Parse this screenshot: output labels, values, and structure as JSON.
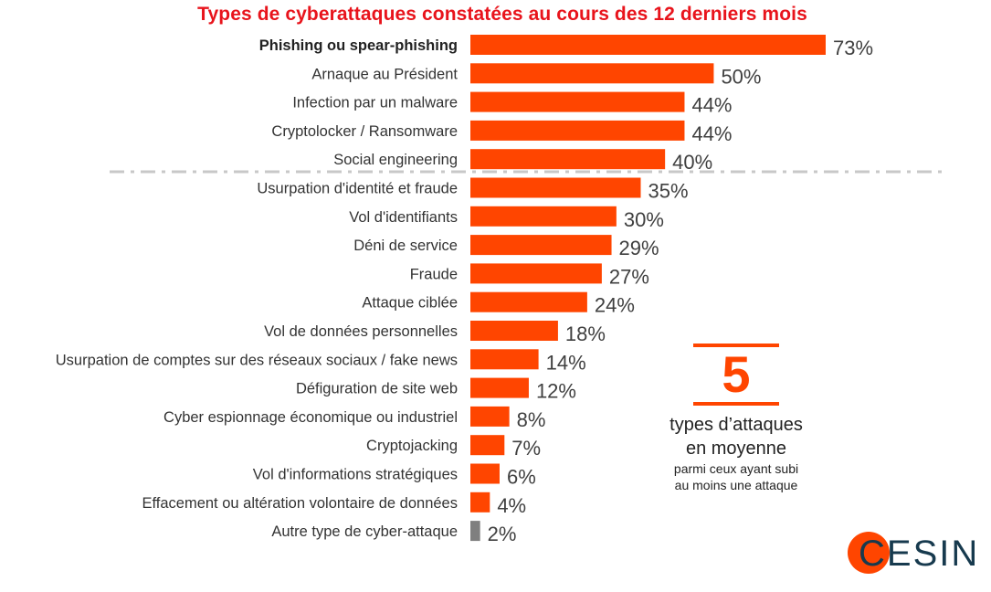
{
  "chart_data": {
    "type": "bar",
    "orientation": "horizontal",
    "title": "Types de cyberattaques constatées au cours des 12 derniers mois",
    "xlabel": "",
    "ylabel": "",
    "xlim": [
      0,
      100
    ],
    "grid": false,
    "categories": [
      "Phishing ou spear-phishing",
      "Arnaque au Président",
      "Infection par un malware",
      "Cryptolocker / Ransomware",
      "Social engineering",
      "Usurpation d'identité et fraude",
      "Vol d'identifiants",
      "Déni de service",
      "Fraude",
      "Attaque ciblée",
      "Vol de données personnelles",
      "Usurpation de comptes sur des réseaux sociaux / fake news",
      "Défiguration de site web",
      "Cyber espionnage économique ou industriel",
      "Cryptojacking",
      "Vol d'informations stratégiques",
      "Effacement ou altération volontaire de données",
      "Autre type de cyber-attaque"
    ],
    "values": [
      73,
      50,
      44,
      44,
      40,
      35,
      30,
      29,
      27,
      24,
      18,
      14,
      12,
      8,
      7,
      6,
      4,
      2
    ],
    "value_labels": [
      "73%",
      "50%",
      "44%",
      "44%",
      "40%",
      "35%",
      "30%",
      "29%",
      "27%",
      "24%",
      "18%",
      "14%",
      "12%",
      "8%",
      "7%",
      "6%",
      "4%",
      "2%"
    ],
    "bar_color": "#ff4500",
    "other_bar_color": "#7f7f7f",
    "title_color": "#e8141c"
  },
  "callout": {
    "number": "5",
    "line1": "types d’attaques",
    "line2": "en moyenne",
    "sub1": "parmi ceux ayant subi",
    "sub2": "au moins une attaque",
    "accent": "#ff4500"
  },
  "logo": {
    "text": "CESIN",
    "text_color": "#173a4e",
    "circle_color": "#ff4500"
  }
}
